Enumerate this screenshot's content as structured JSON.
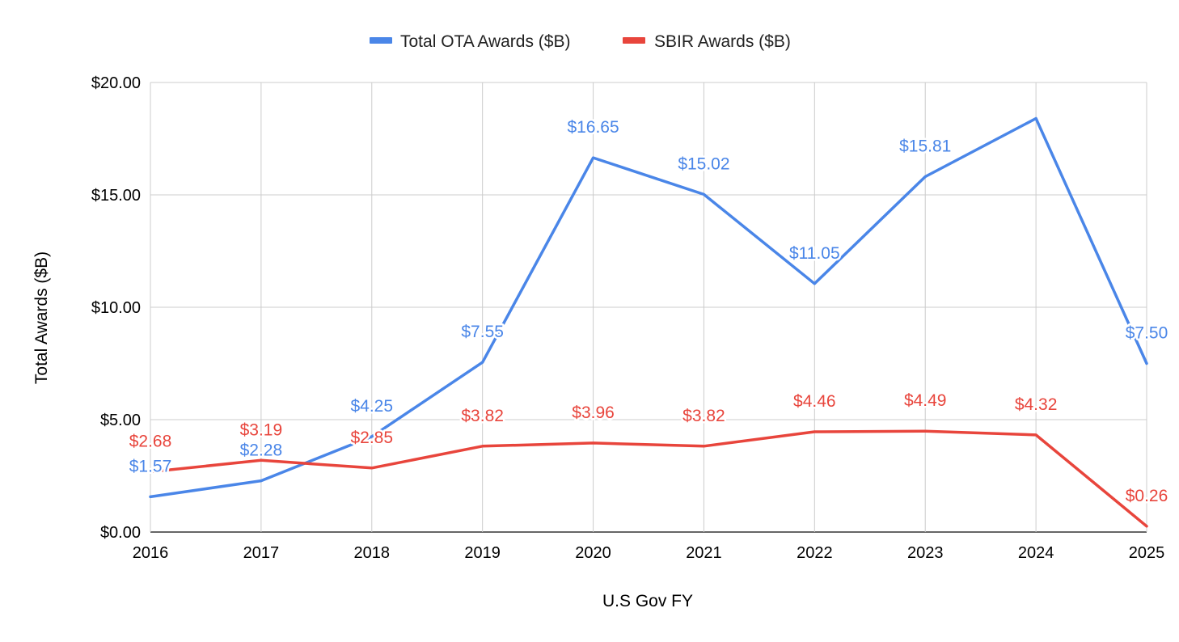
{
  "chart_data": {
    "type": "line",
    "title": "",
    "categories": [
      "2016",
      "2017",
      "2018",
      "2019",
      "2020",
      "2021",
      "2022",
      "2023",
      "2024",
      "2025"
    ],
    "series": [
      {
        "name": "Total OTA Awards ($B)",
        "color": "#4a86e8",
        "values": [
          1.57,
          2.28,
          4.25,
          7.55,
          16.65,
          15.02,
          11.05,
          15.81,
          18.4,
          7.5
        ],
        "labels": [
          "$1.57",
          "$2.28",
          "$4.25",
          "$7.55",
          "$16.65",
          "$15.02",
          "$11.05",
          "$15.81",
          null,
          "$7.50"
        ]
      },
      {
        "name": "SBIR Awards ($B)",
        "color": "#e8453c",
        "values": [
          2.68,
          3.19,
          2.85,
          3.82,
          3.96,
          3.82,
          4.46,
          4.49,
          4.32,
          0.26
        ],
        "labels": [
          "$2.68",
          "$3.19",
          "$2.85",
          "$3.82",
          "$3.96",
          "$3.82",
          "$4.46",
          "$4.49",
          "$4.32",
          "$0.26"
        ]
      }
    ],
    "xlabel": "U.S Gov FY",
    "ylabel": "Total Awards ($B)",
    "ylim": [
      0,
      20
    ],
    "yticks": [
      0,
      5,
      10,
      15,
      20
    ],
    "ytick_labels": [
      "$0.00",
      "$5.00",
      "$10.00",
      "$15.00",
      "$20.00"
    ],
    "grid": true,
    "legend_position": "top-center"
  }
}
